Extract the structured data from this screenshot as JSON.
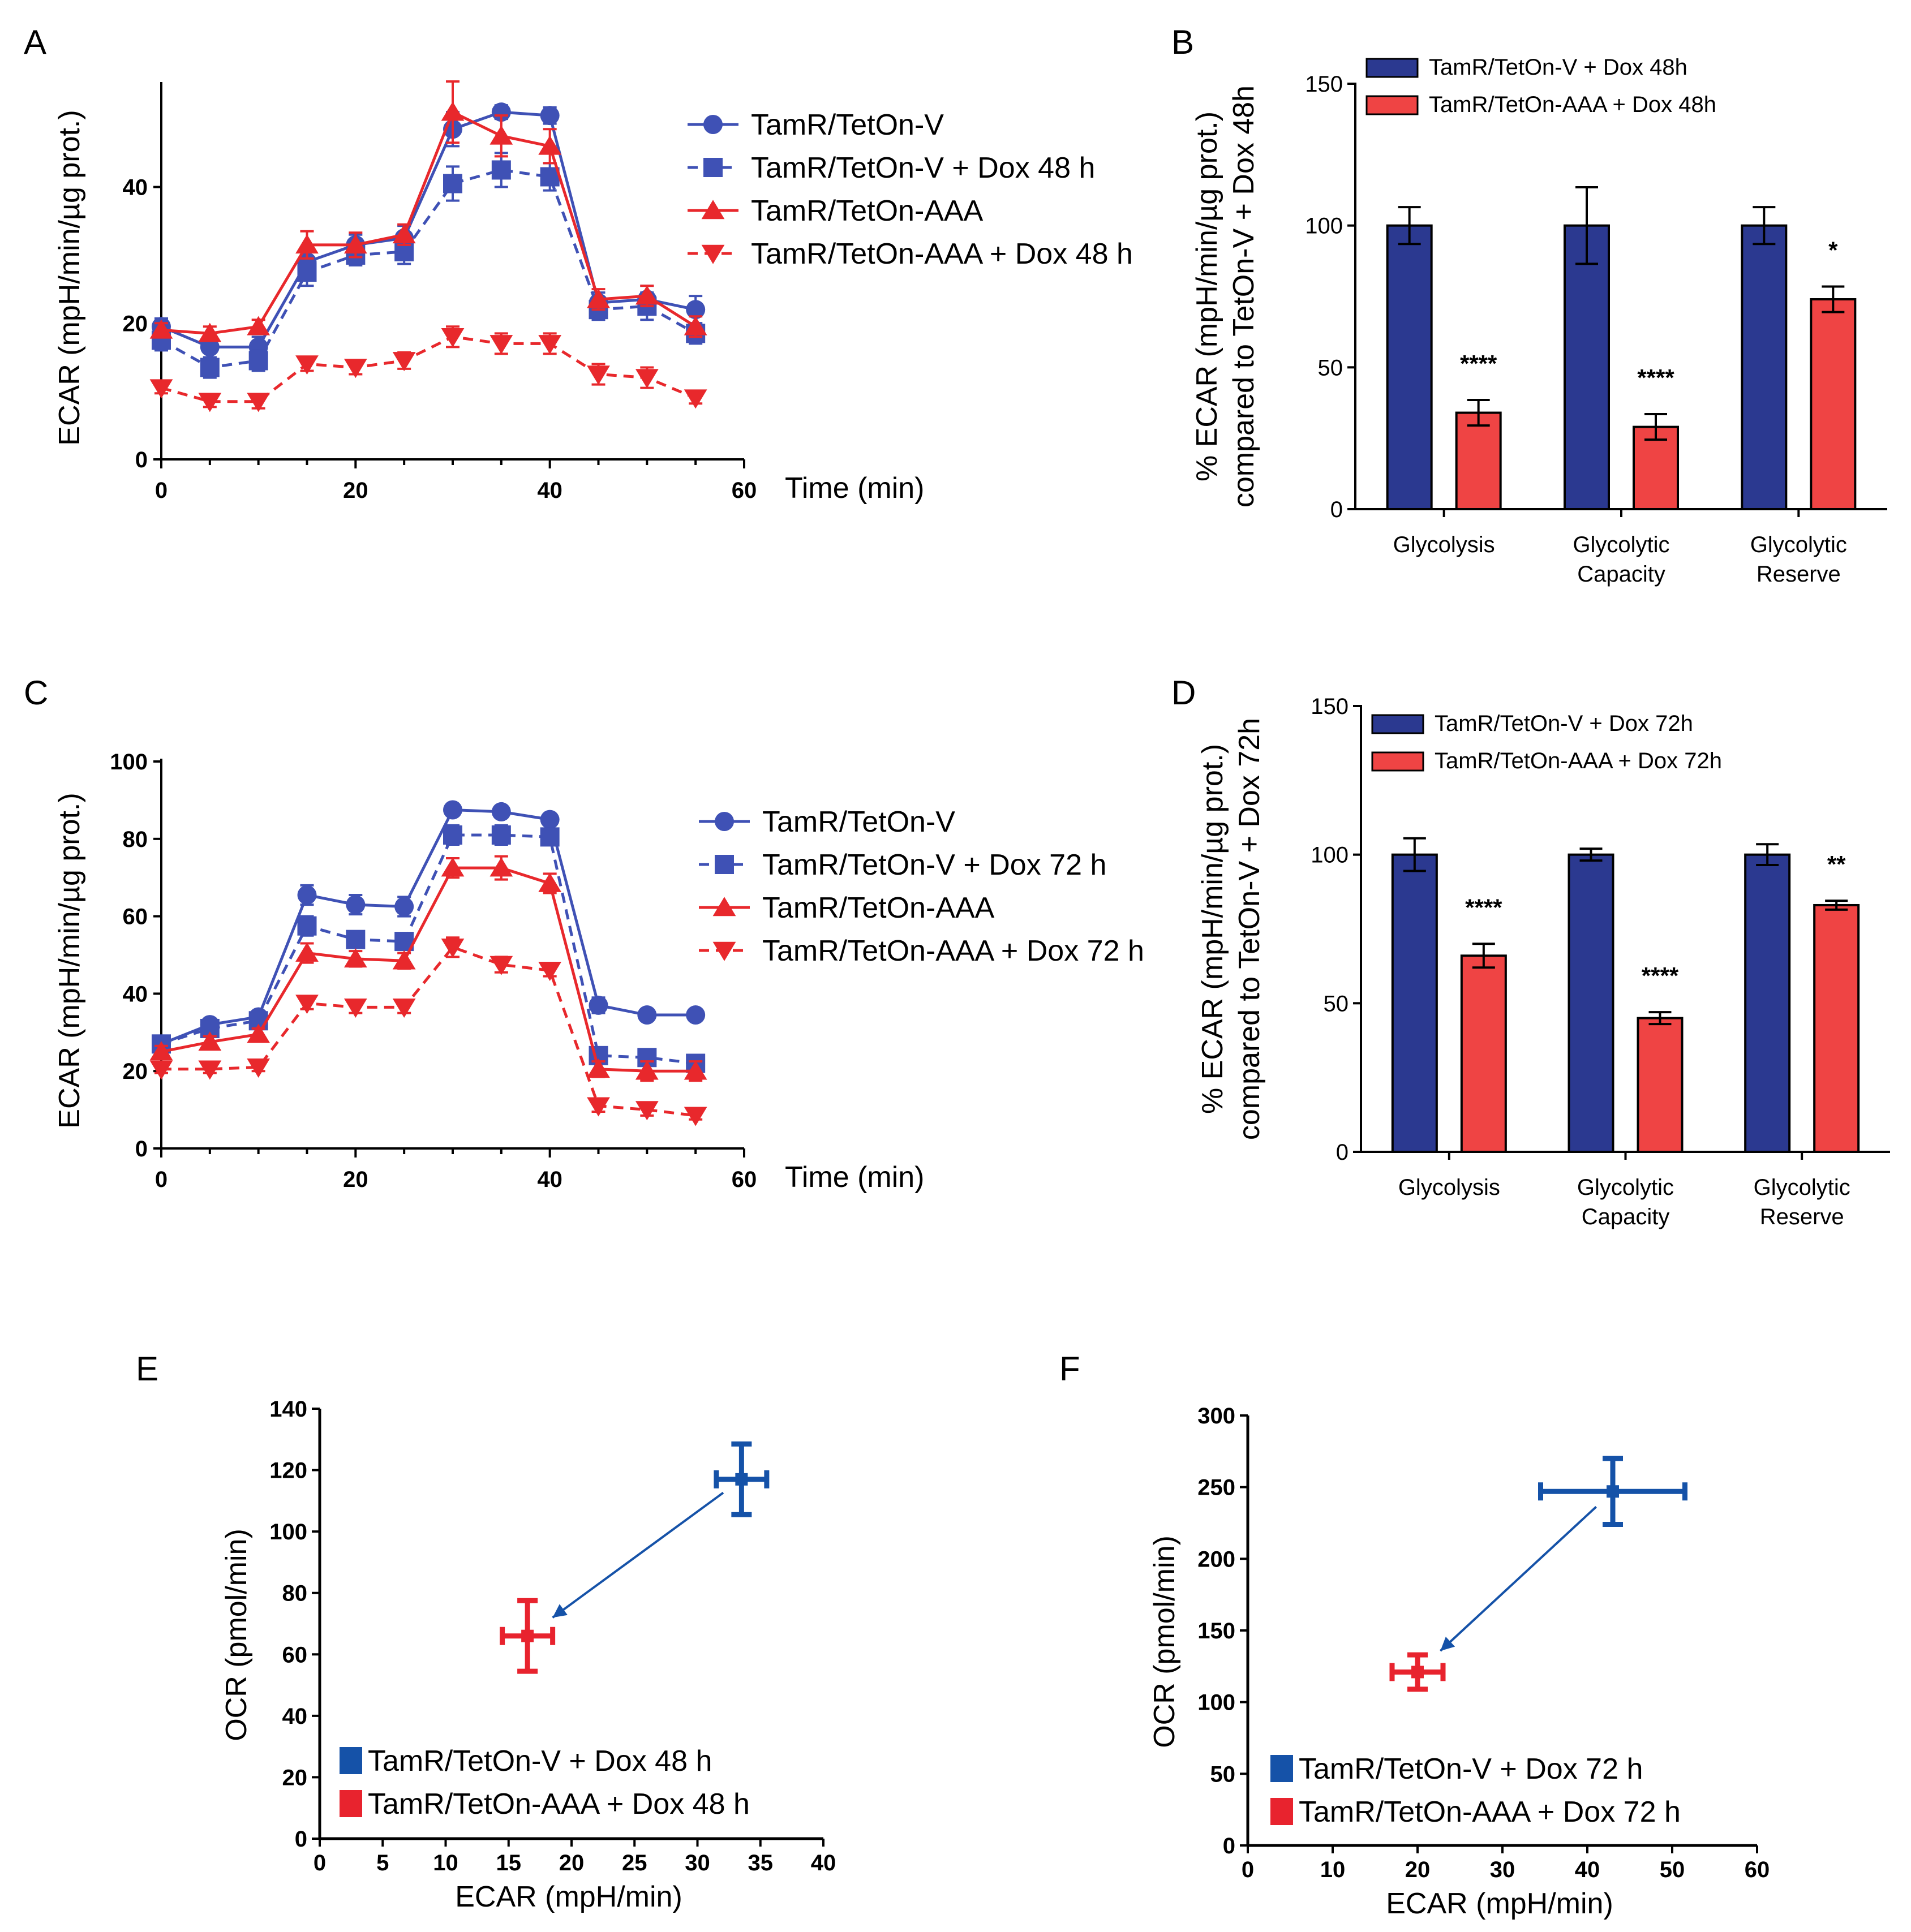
{
  "colors": {
    "blue": "#3f51b5",
    "navy": "#2b3990",
    "red": "#e8282c",
    "bar_red": "#ef4444",
    "scatter_blue": "#1552a8",
    "scatter_red": "#e8232e"
  },
  "chart_data": [
    {
      "id": "A",
      "type": "line",
      "panel": "A",
      "xlabel": "Time (min)",
      "ylabel": "ECAR (mpH/min/µg prot.)",
      "xlim": [
        0,
        60
      ],
      "ylim": [
        0,
        55
      ],
      "xticks": [
        "0",
        "20",
        "40",
        "60"
      ],
      "yticks": [
        "0",
        "20",
        "40"
      ],
      "x": [
        0,
        5,
        10,
        15,
        20,
        25,
        30,
        35,
        40,
        45,
        50,
        55
      ],
      "series": [
        {
          "name": "TamR/TetOn-V",
          "marker": "circle",
          "dash": false,
          "color": "blue",
          "values": [
            19.5,
            16.5,
            16.5,
            29,
            31.5,
            32.5,
            48.5,
            51,
            50.5,
            23,
            23.5,
            22
          ],
          "errors": [
            1.2,
            1.5,
            1.5,
            1.8,
            1.5,
            1.8,
            2.5,
            1,
            1.2,
            1.5,
            2,
            2
          ]
        },
        {
          "name": "TamR/TetOn-V + Dox 48 h",
          "marker": "square",
          "dash": true,
          "color": "blue",
          "values": [
            17.5,
            13.5,
            14.5,
            27.5,
            30,
            30.5,
            40.5,
            42.5,
            41.5,
            22,
            22.5,
            18.5
          ],
          "errors": [
            1.5,
            1.5,
            1.5,
            2,
            1.5,
            1.8,
            2.5,
            2.5,
            2,
            1.5,
            2,
            1.5
          ]
        },
        {
          "name": "TamR/TetOn-AAA",
          "marker": "triangle-up",
          "dash": false,
          "color": "red",
          "values": [
            19,
            18.5,
            19.5,
            31.5,
            31.5,
            33,
            51,
            47.5,
            46,
            23.5,
            24,
            19.5
          ],
          "errors": [
            1,
            1,
            1,
            2,
            1.8,
            1.5,
            4.5,
            3,
            2.5,
            1.5,
            1.5,
            1.5
          ]
        },
        {
          "name": "TamR/TetOn-AAA + Dox 48 h",
          "marker": "triangle-down",
          "dash": true,
          "color": "red",
          "values": [
            10.5,
            8.5,
            8.5,
            14,
            13.5,
            14.5,
            18,
            17,
            17,
            12.5,
            12,
            9
          ],
          "errors": [
            0.8,
            0.8,
            1,
            1,
            1,
            1.2,
            1.5,
            1.5,
            1.5,
            1.5,
            1.5,
            0.8
          ]
        }
      ]
    },
    {
      "id": "B",
      "type": "bar",
      "panel": "B",
      "ylabel_line1": "% ECAR (mpH/min/µg prot.)",
      "ylabel_line2": "compared to TetOn-V + Dox 48h",
      "ylim": [
        0,
        150
      ],
      "yticks": [
        "0",
        "50",
        "100",
        "150"
      ],
      "categories": [
        "Glycolysis",
        "Glycolytic|Capacity",
        "Glycolytic|Reserve"
      ],
      "series": [
        {
          "name": "TamR/TetOn-V + Dox 48h",
          "color": "navy",
          "values": [
            100,
            100,
            100
          ],
          "errors": [
            6.5,
            13.5,
            6.5
          ]
        },
        {
          "name": "TamR/TetOn-AAA + Dox 48h",
          "color": "bar_red",
          "values": [
            34,
            29,
            74
          ],
          "errors": [
            4.5,
            4.5,
            4.5
          ]
        }
      ],
      "significance": [
        "****",
        "****",
        "*"
      ]
    },
    {
      "id": "C",
      "type": "line",
      "panel": "C",
      "xlabel": "Time (min)",
      "ylabel": "ECAR (mpH/min/µg prot.)",
      "xlim": [
        0,
        60
      ],
      "ylim": [
        0,
        100
      ],
      "xticks": [
        "0",
        "20",
        "40",
        "60"
      ],
      "yticks": [
        "0",
        "20",
        "40",
        "60",
        "80",
        "100"
      ],
      "x": [
        0,
        5,
        10,
        15,
        20,
        25,
        30,
        35,
        40,
        45,
        50,
        55
      ],
      "series": [
        {
          "name": "TamR/TetOn-V",
          "marker": "circle",
          "dash": false,
          "color": "blue",
          "values": [
            27,
            32,
            34,
            65.5,
            63,
            62.5,
            87.5,
            87,
            85,
            37,
            34.5,
            34.5
          ],
          "errors": [
            1.5,
            1.5,
            1.5,
            2.5,
            2.5,
            2.5,
            1,
            1,
            1,
            2,
            1,
            1
          ]
        },
        {
          "name": "TamR/TetOn-V + Dox 72 h",
          "marker": "square",
          "dash": true,
          "color": "blue",
          "values": [
            27,
            31,
            33,
            57.5,
            54,
            53.5,
            81,
            81,
            80.5,
            24,
            23.5,
            22
          ],
          "errors": [
            1.5,
            1.5,
            1.5,
            2.5,
            2,
            2,
            2.5,
            2.5,
            2,
            2,
            1.5,
            1.5
          ]
        },
        {
          "name": "TamR/TetOn-AAA",
          "marker": "triangle-up",
          "dash": false,
          "color": "red",
          "values": [
            25,
            27.5,
            29.5,
            50.5,
            49,
            48.5,
            72.5,
            72.5,
            68.5,
            20.5,
            20,
            20
          ],
          "errors": [
            1.5,
            1.5,
            1.5,
            2.5,
            2,
            2,
            2.5,
            3,
            2.5,
            2,
            2.5,
            2.5
          ]
        },
        {
          "name": "TamR/TetOn-AAA + Dox 72 h",
          "marker": "triangle-down",
          "dash": true,
          "color": "red",
          "values": [
            20.5,
            20.5,
            21,
            37.5,
            36.5,
            36.5,
            52,
            47.5,
            46,
            11,
            10,
            8.5
          ],
          "errors": [
            1,
            1,
            1,
            1.5,
            1.5,
            1.5,
            2.5,
            2,
            1.5,
            1.5,
            1.5,
            1
          ]
        }
      ]
    },
    {
      "id": "D",
      "type": "bar",
      "panel": "D",
      "ylabel_line1": "% ECAR (mpH/min/µg prot.)",
      "ylabel_line2": "compared to TetOn-V + Dox 72h",
      "ylim": [
        0,
        150
      ],
      "yticks": [
        "0",
        "50",
        "100",
        "150"
      ],
      "categories": [
        "Glycolysis",
        "Glycolytic|Capacity",
        "Glycolytic|Reserve"
      ],
      "series": [
        {
          "name": "TamR/TetOn-V + Dox 72h",
          "color": "navy",
          "values": [
            100,
            100,
            100
          ],
          "errors": [
            5.5,
            2,
            3.5
          ]
        },
        {
          "name": "TamR/TetOn-AAA + Dox 72h",
          "color": "bar_red",
          "values": [
            66,
            45,
            83
          ],
          "errors": [
            4,
            2,
            1.5
          ]
        }
      ],
      "significance": [
        "****",
        "****",
        "**"
      ]
    },
    {
      "id": "E",
      "type": "scatter",
      "panel": "E",
      "xlabel": "ECAR (mpH/min)",
      "ylabel": "OCR (pmol/min)",
      "xlim": [
        0,
        40
      ],
      "ylim": [
        0,
        140
      ],
      "xticks": [
        "0",
        "5",
        "10",
        "15",
        "20",
        "25",
        "30",
        "35",
        "40"
      ],
      "yticks": [
        "0",
        "20",
        "40",
        "60",
        "80",
        "100",
        "120",
        "140"
      ],
      "series": [
        {
          "name": "TamR/TetOn-V + Dox 48 h",
          "color": "scatter_blue",
          "x": 33.5,
          "y": 117,
          "xerr": 2,
          "yerr": 11.5
        },
        {
          "name": "TamR/TetOn-AAA + Dox 48 h",
          "color": "scatter_red",
          "x": 16.5,
          "y": 66,
          "xerr": 2,
          "yerr": 11.5
        }
      ],
      "arrow": {
        "from": "TamR/TetOn-V + Dox 48 h",
        "to": "TamR/TetOn-AAA + Dox 48 h"
      }
    },
    {
      "id": "F",
      "type": "scatter",
      "panel": "F",
      "xlabel": "ECAR (mpH/min)",
      "ylabel": "OCR (pmol/min)",
      "xlim": [
        0,
        60
      ],
      "ylim": [
        0,
        300
      ],
      "xticks": [
        "0",
        "10",
        "20",
        "30",
        "40",
        "50",
        "60"
      ],
      "yticks": [
        "0",
        "50",
        "100",
        "150",
        "200",
        "250",
        "300"
      ],
      "series": [
        {
          "name": "TamR/TetOn-V + Dox 72 h",
          "color": "scatter_blue",
          "x": 43,
          "y": 247,
          "xerr": 8.5,
          "yerr": 23
        },
        {
          "name": "TamR/TetOn-AAA + Dox 72 h",
          "color": "scatter_red",
          "x": 20,
          "y": 121,
          "xerr": 3,
          "yerr": 12
        }
      ],
      "arrow": {
        "from": "TamR/TetOn-V + Dox 72 h",
        "to": "TamR/TetOn-AAA + Dox 72 h"
      }
    }
  ]
}
